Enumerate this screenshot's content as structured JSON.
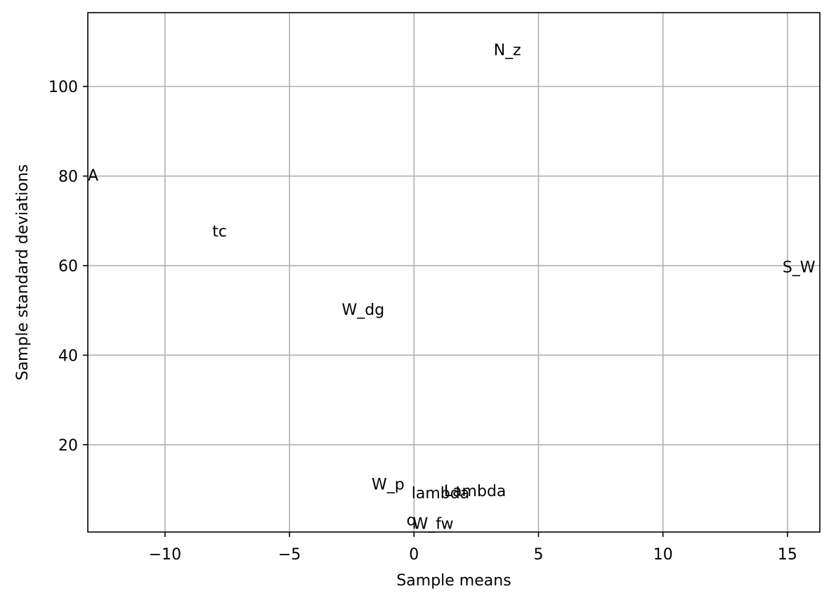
{
  "chart_data": {
    "type": "scatter",
    "title": "",
    "xlabel": "Sample means",
    "ylabel": "Sample standard deviations",
    "xlim": [
      -13.1,
      16.3
    ],
    "ylim": [
      0.5,
      116.5
    ],
    "xticks": [
      -10,
      -5,
      0,
      5,
      10,
      15
    ],
    "yticks": [
      20,
      40,
      60,
      80,
      100
    ],
    "xtick_labels": [
      "−10",
      "−5",
      "0",
      "5",
      "10",
      "15"
    ],
    "ytick_labels": [
      "20",
      "40",
      "60",
      "80",
      "100"
    ],
    "grid": true,
    "marker": "text labels only",
    "points": [
      {
        "label": "N_z",
        "x": 3.2,
        "y": 107
      },
      {
        "label": "A",
        "x": -13.1,
        "y": 79
      },
      {
        "label": "tc",
        "x": -8.1,
        "y": 66.5
      },
      {
        "label": "S_W",
        "x": 14.8,
        "y": 58.5
      },
      {
        "label": "W_dg",
        "x": -2.9,
        "y": 49
      },
      {
        "label": "W_p",
        "x": -1.7,
        "y": 10
      },
      {
        "label": "Lambda",
        "x": 1.2,
        "y": 8.5
      },
      {
        "label": "lambda",
        "x": -0.1,
        "y": 8
      },
      {
        "label": "q",
        "x": -0.3,
        "y": 2
      },
      {
        "label": "W_fw",
        "x": -0.05,
        "y": 1.2
      }
    ]
  }
}
